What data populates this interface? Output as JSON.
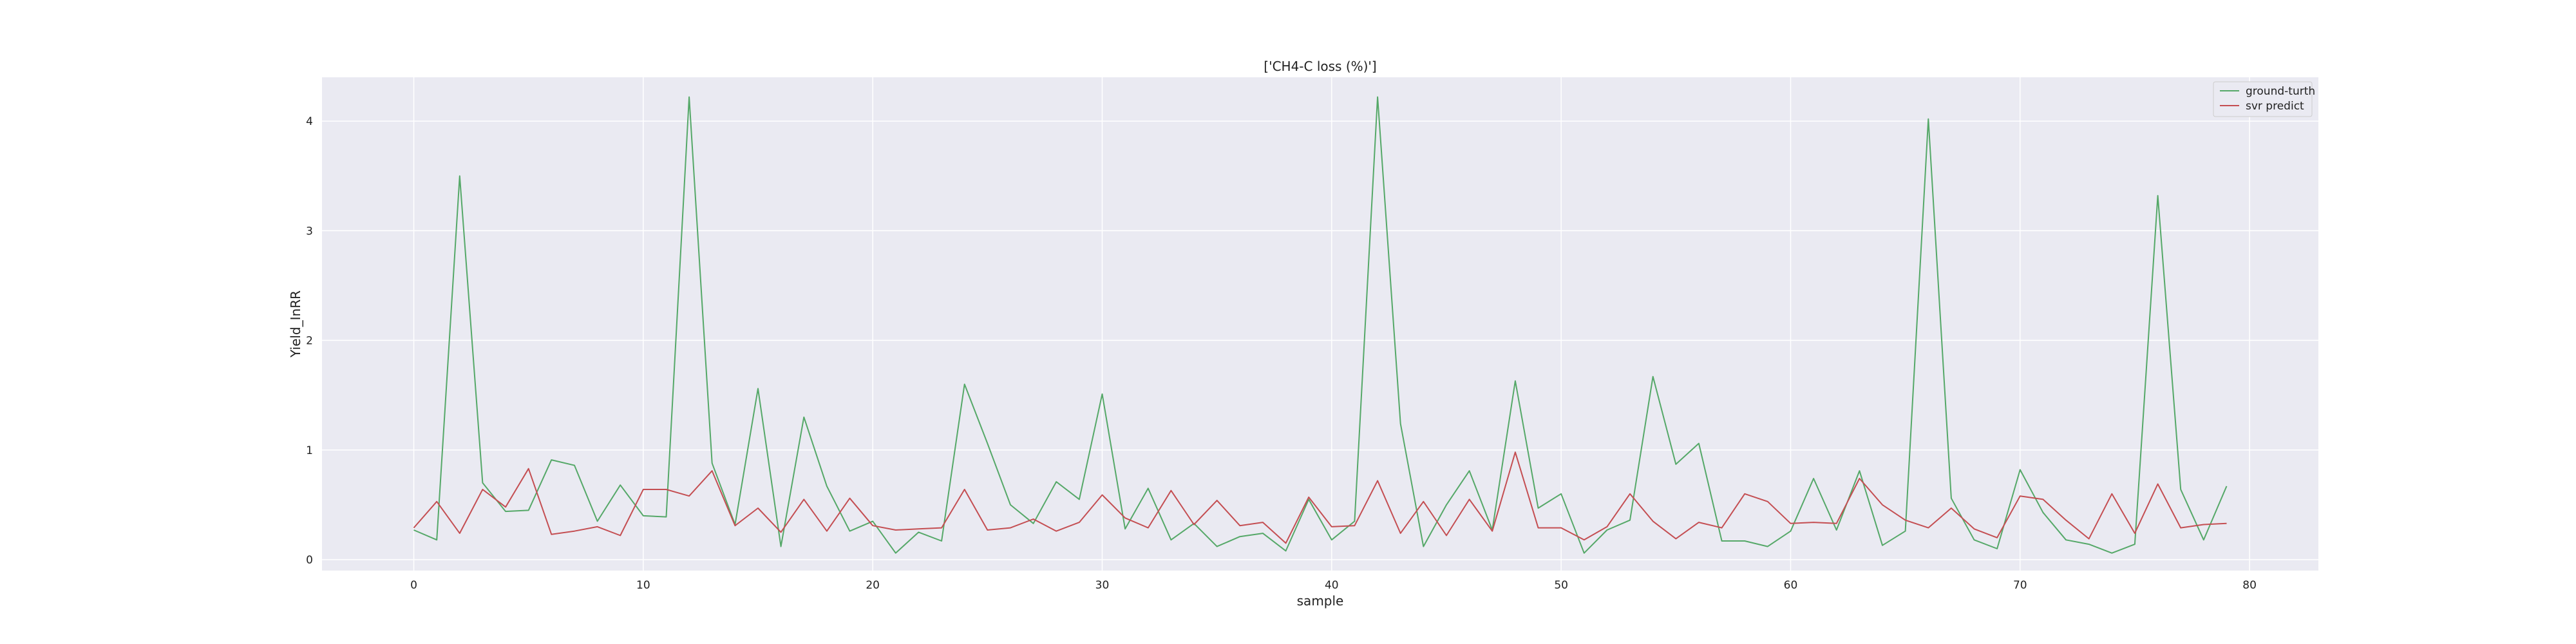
{
  "chart_data": {
    "type": "line",
    "title": "['CH4-C loss (%)']",
    "xlabel": "sample",
    "ylabel": "Yield_InRR",
    "xlim": [
      -4,
      83
    ],
    "ylim": [
      -0.1,
      4.4
    ],
    "xticks": [
      0,
      10,
      20,
      30,
      40,
      50,
      60,
      70,
      80
    ],
    "yticks": [
      0,
      1,
      2,
      3,
      4
    ],
    "grid": true,
    "legend_position": "top-right",
    "x": [
      0,
      1,
      2,
      3,
      4,
      5,
      6,
      7,
      8,
      9,
      10,
      11,
      12,
      13,
      14,
      15,
      16,
      17,
      18,
      19,
      20,
      21,
      22,
      23,
      24,
      25,
      26,
      27,
      28,
      29,
      30,
      31,
      32,
      33,
      34,
      35,
      36,
      37,
      38,
      39,
      40,
      41,
      42,
      43,
      44,
      45,
      46,
      47,
      48,
      49,
      50,
      51,
      52,
      53,
      54,
      55,
      56,
      57,
      58,
      59,
      60,
      61,
      62,
      63,
      64,
      65,
      66,
      67,
      68,
      69,
      70,
      71,
      72,
      73,
      74,
      75,
      76,
      77,
      78,
      79
    ],
    "series": [
      {
        "name": "ground-turth",
        "color": "#55a868",
        "values": [
          0.27,
          0.18,
          3.5,
          0.7,
          0.44,
          0.45,
          0.91,
          0.86,
          0.35,
          0.68,
          0.4,
          0.39,
          4.22,
          0.88,
          0.32,
          1.56,
          0.12,
          1.3,
          0.67,
          0.26,
          0.35,
          0.06,
          0.25,
          0.17,
          1.6,
          1.06,
          0.5,
          0.33,
          0.71,
          0.55,
          1.51,
          0.28,
          0.65,
          0.18,
          0.33,
          0.12,
          0.21,
          0.24,
          0.08,
          0.55,
          0.18,
          0.35,
          4.22,
          1.24,
          0.12,
          0.5,
          0.81,
          0.27,
          1.63,
          0.47,
          0.6,
          0.06,
          0.27,
          0.36,
          1.67,
          0.87,
          1.06,
          0.17,
          0.17,
          0.12,
          0.26,
          0.74,
          0.27,
          0.81,
          0.13,
          0.26,
          4.02,
          0.56,
          0.18,
          0.1,
          0.82,
          0.43,
          0.18,
          0.14,
          0.06,
          0.14,
          3.32,
          0.64,
          0.18,
          0.67
        ]
      },
      {
        "name": "svr predict",
        "color": "#c44e52",
        "values": [
          0.29,
          0.53,
          0.24,
          0.64,
          0.48,
          0.83,
          0.23,
          0.26,
          0.3,
          0.22,
          0.64,
          0.64,
          0.58,
          0.81,
          0.31,
          0.47,
          0.25,
          0.55,
          0.26,
          0.56,
          0.31,
          0.27,
          0.28,
          0.29,
          0.64,
          0.27,
          0.29,
          0.37,
          0.26,
          0.34,
          0.59,
          0.38,
          0.29,
          0.63,
          0.32,
          0.54,
          0.31,
          0.34,
          0.15,
          0.57,
          0.3,
          0.31,
          0.72,
          0.24,
          0.53,
          0.22,
          0.55,
          0.26,
          0.98,
          0.29,
          0.29,
          0.18,
          0.3,
          0.6,
          0.35,
          0.19,
          0.34,
          0.29,
          0.6,
          0.53,
          0.33,
          0.34,
          0.33,
          0.74,
          0.5,
          0.36,
          0.29,
          0.47,
          0.28,
          0.2,
          0.58,
          0.55,
          0.36,
          0.19,
          0.6,
          0.24,
          0.69,
          0.29,
          0.32,
          0.33
        ]
      }
    ]
  }
}
